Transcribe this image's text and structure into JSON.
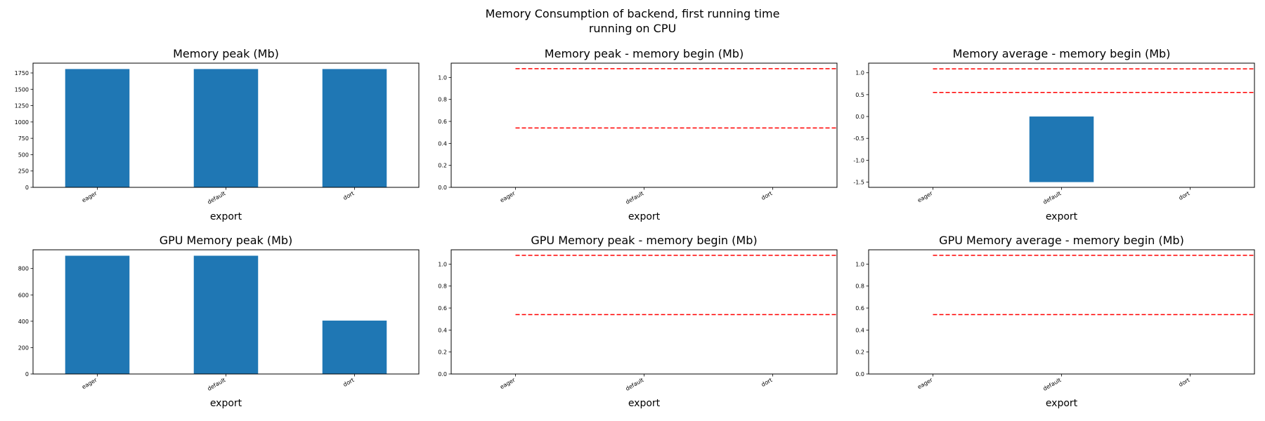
{
  "figure": {
    "title_line1": "Memory Consumption of backend, first running time",
    "title_line2": "running on CPU",
    "bar_color": "#1f77b4",
    "ref_line_color": "#ff0000"
  },
  "chart_data": [
    {
      "type": "bar",
      "title": "Memory peak (Mb)",
      "xlabel": "export",
      "categories": [
        "eager",
        "default",
        "dort"
      ],
      "values": [
        1810,
        1810,
        1810
      ],
      "ylim": [
        0,
        1900
      ],
      "yticks": [
        0,
        250,
        500,
        750,
        1000,
        1250,
        1500,
        1750
      ],
      "ref_lines": []
    },
    {
      "type": "bar",
      "title": "Memory peak - memory begin (Mb)",
      "xlabel": "export",
      "categories": [
        "eager",
        "default",
        "dort"
      ],
      "values": [
        0,
        0,
        0
      ],
      "ylim": [
        0,
        1.13
      ],
      "yticks": [
        0.0,
        0.2,
        0.4,
        0.6,
        0.8,
        1.0
      ],
      "ref_lines": [
        1.08,
        0.54
      ]
    },
    {
      "type": "bar",
      "title": "Memory average - memory begin (Mb)",
      "xlabel": "export",
      "categories": [
        "eager",
        "default",
        "dort"
      ],
      "values": [
        0,
        -1.5,
        0
      ],
      "ylim": [
        -1.62,
        1.22
      ],
      "yticks": [
        -1.5,
        -1.0,
        -0.5,
        0.0,
        0.5,
        1.0
      ],
      "ref_lines": [
        1.09,
        0.55
      ]
    },
    {
      "type": "bar",
      "title": "GPU Memory peak (Mb)",
      "xlabel": "export",
      "categories": [
        "eager",
        "default",
        "dort"
      ],
      "values": [
        897,
        897,
        405
      ],
      "ylim": [
        0,
        942
      ],
      "yticks": [
        0,
        200,
        400,
        600,
        800
      ],
      "ref_lines": []
    },
    {
      "type": "bar",
      "title": "GPU Memory peak - memory begin (Mb)",
      "xlabel": "export",
      "categories": [
        "eager",
        "default",
        "dort"
      ],
      "values": [
        0,
        0,
        0
      ],
      "ylim": [
        0,
        1.13
      ],
      "yticks": [
        0.0,
        0.2,
        0.4,
        0.6,
        0.8,
        1.0
      ],
      "ref_lines": [
        1.08,
        0.54
      ]
    },
    {
      "type": "bar",
      "title": "GPU Memory average - memory begin (Mb)",
      "xlabel": "export",
      "categories": [
        "eager",
        "default",
        "dort"
      ],
      "values": [
        0,
        0,
        0
      ],
      "ylim": [
        0,
        1.13
      ],
      "yticks": [
        0.0,
        0.2,
        0.4,
        0.6,
        0.8,
        1.0
      ],
      "ref_lines": [
        1.08,
        0.54
      ]
    }
  ]
}
